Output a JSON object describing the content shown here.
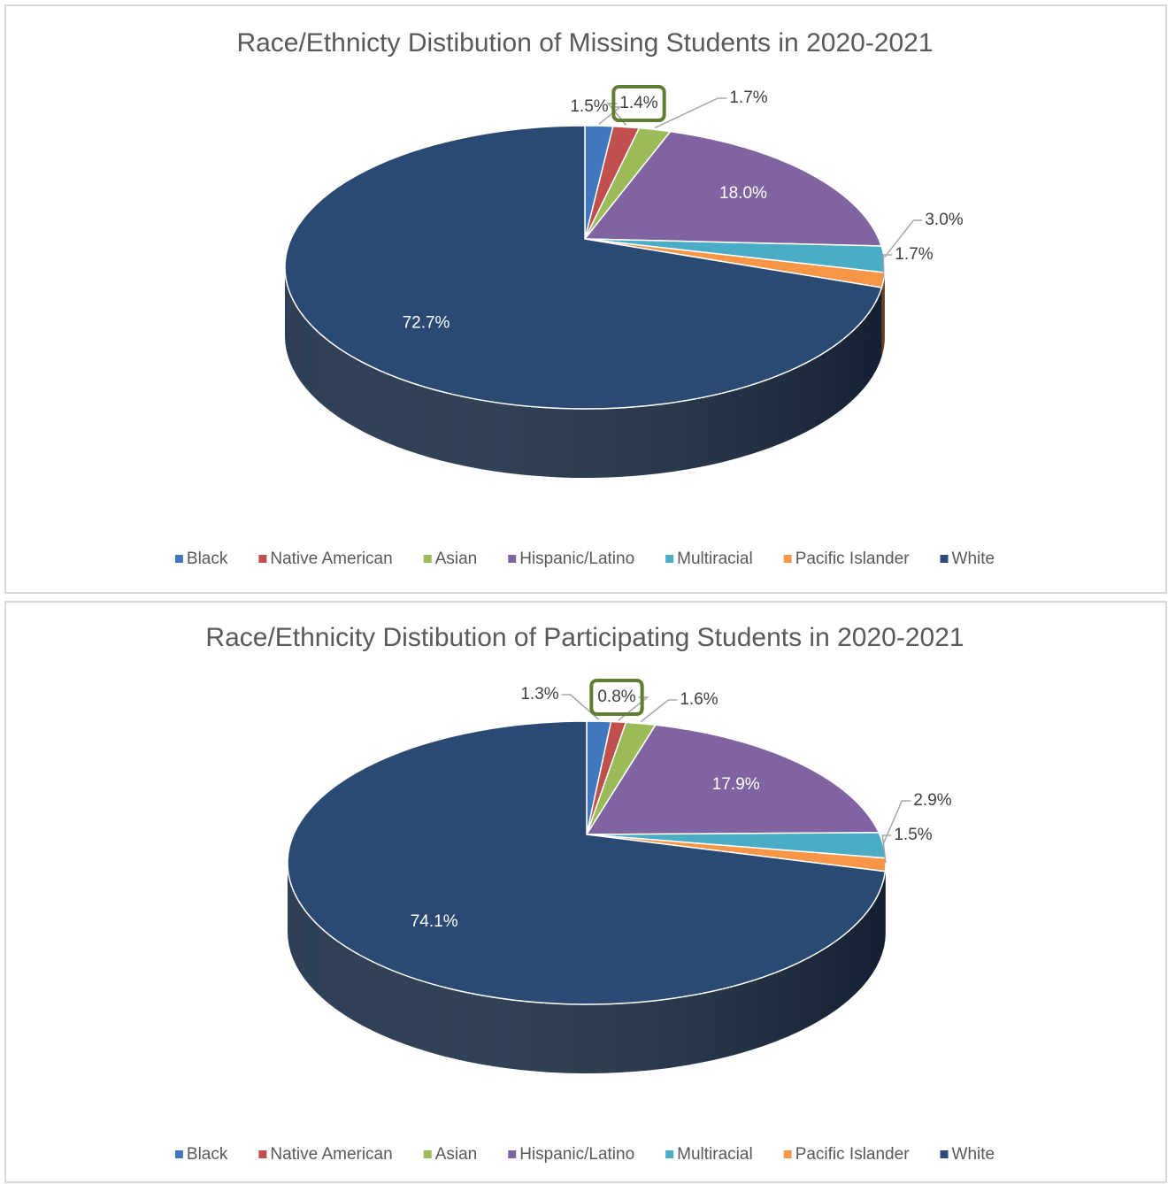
{
  "chart_data": [
    {
      "type": "pie",
      "title": "Race/Ethnicty Distibution of Missing Students in 2020-2021",
      "categories": [
        "Black",
        "Native American",
        "Asian",
        "Hispanic/Latino",
        "Multiracial",
        "Pacific Islander",
        "White"
      ],
      "values": [
        1.5,
        1.4,
        1.7,
        18.0,
        3.0,
        1.7,
        72.7
      ],
      "value_labels": [
        "1.5%",
        "1.4%",
        "1.7%",
        "18.0%",
        "3.0%",
        "1.7%",
        "72.7%"
      ],
      "colors": [
        "#4078c0",
        "#c0504d",
        "#9bbb59",
        "#8064a2",
        "#4bacc6",
        "#f79646",
        "#2b4a73"
      ],
      "legend": "bottom"
    },
    {
      "type": "pie",
      "title": "Race/Ethnicity Distibution of Participating Students in 2020-2021",
      "categories": [
        "Black",
        "Native American",
        "Asian",
        "Hispanic/Latino",
        "Multiracial",
        "Pacific Islander",
        "White"
      ],
      "values": [
        1.3,
        0.8,
        1.6,
        17.9,
        2.9,
        1.5,
        74.1
      ],
      "value_labels": [
        "1.3%",
        "0.8%",
        "1.6%",
        "17.9%",
        "2.9%",
        "1.5%",
        "74.1%"
      ],
      "colors": [
        "#4078c0",
        "#c0504d",
        "#9bbb59",
        "#8064a2",
        "#4bacc6",
        "#f79646",
        "#2b4a73"
      ],
      "legend": "bottom"
    }
  ]
}
